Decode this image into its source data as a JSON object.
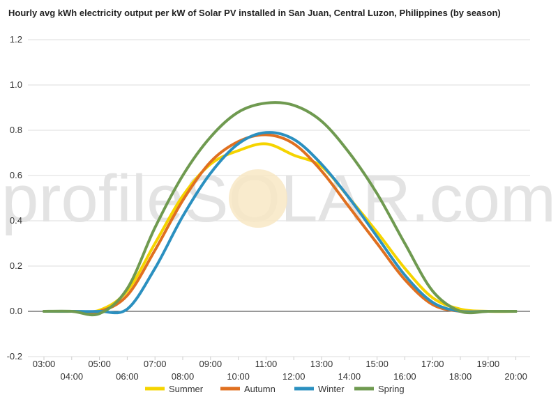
{
  "chart_data": {
    "type": "line",
    "title": "Hourly avg kWh electricity output per kW of Solar PV installed in San Juan, Central Luzon, Philippines (by season)",
    "xlabel": "",
    "ylabel": "",
    "ylim": [
      -0.2,
      1.2
    ],
    "yticks": [
      -0.2,
      0.0,
      0.2,
      0.4,
      0.6,
      0.8,
      1.0,
      1.2
    ],
    "ytick_labels": [
      "-0.2",
      "0.0",
      "0.2",
      "0.4",
      "0.6",
      "0.8",
      "1.0",
      "1.2"
    ],
    "x": [
      "03:00",
      "04:00",
      "05:00",
      "06:00",
      "07:00",
      "08:00",
      "09:00",
      "10:00",
      "11:00",
      "12:00",
      "13:00",
      "14:00",
      "15:00",
      "16:00",
      "17:00",
      "18:00",
      "19:00",
      "20:00"
    ],
    "grid": true,
    "legend_position": "bottom",
    "watermark": "profileSOLAR.com",
    "series": [
      {
        "name": "Summer",
        "color": "#f5d400",
        "values": [
          0.0,
          0.0,
          0.005,
          0.09,
          0.3,
          0.51,
          0.65,
          0.71,
          0.74,
          0.69,
          0.64,
          0.5,
          0.35,
          0.19,
          0.06,
          0.01,
          0.0,
          0.0
        ]
      },
      {
        "name": "Autumn",
        "color": "#e07020",
        "values": [
          0.0,
          0.0,
          0.0,
          0.07,
          0.27,
          0.49,
          0.66,
          0.75,
          0.78,
          0.74,
          0.62,
          0.46,
          0.3,
          0.14,
          0.03,
          0.0,
          0.0,
          0.0
        ]
      },
      {
        "name": "Winter",
        "color": "#2b90c0",
        "values": [
          0.0,
          0.0,
          0.0,
          0.01,
          0.19,
          0.42,
          0.61,
          0.74,
          0.79,
          0.76,
          0.65,
          0.5,
          0.33,
          0.16,
          0.04,
          0.0,
          0.0,
          0.0
        ]
      },
      {
        "name": "Spring",
        "color": "#6f9a50",
        "values": [
          0.0,
          0.0,
          -0.01,
          0.1,
          0.37,
          0.6,
          0.77,
          0.88,
          0.92,
          0.91,
          0.84,
          0.7,
          0.52,
          0.3,
          0.09,
          0.0,
          0.0,
          0.0
        ]
      }
    ]
  }
}
